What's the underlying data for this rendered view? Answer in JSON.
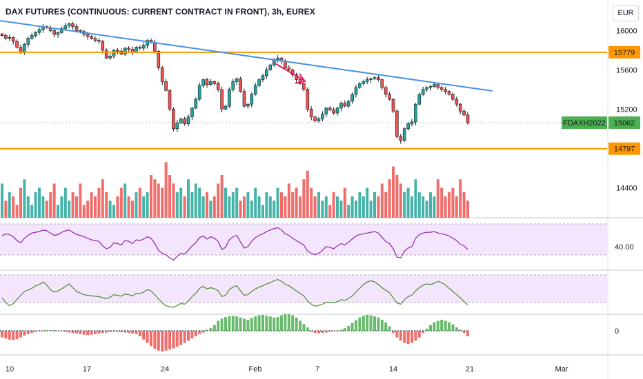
{
  "title": "DAX FUTURES (CONTINUOUS: CURRENT CONTRACT IN FRONT), 3h, EUREX",
  "currency_button": "EUR",
  "colors": {
    "up": "#26a69a",
    "down": "#ef5350",
    "trendline": "#4a90e2",
    "level_line": "#ff9800",
    "annotation_arrow": "#e91e63",
    "rsi_line": "#8e24aa",
    "osc_line": "#4c8a2c",
    "panel_fill": "#f3e5fb",
    "hist_up": "#4caf50",
    "hist_down": "#ef5350"
  },
  "chart_data": {
    "type": "candlestick",
    "symbol": "FDAXH2022",
    "timeframe": "3h",
    "exchange": "EUREX",
    "last_price": 15062,
    "price_axis": {
      "ticks": [
        16000,
        15600,
        15200,
        14400
      ],
      "ylim": [
        14100,
        16220
      ]
    },
    "x_axis": {
      "tick_labels": [
        "10",
        "17",
        "24",
        "Feb",
        "7",
        "14",
        "21",
        "Mar"
      ]
    },
    "horizontal_levels": [
      {
        "label": "15779",
        "value": 15779
      },
      {
        "label": "14797",
        "value": 14797
      }
    ],
    "trendline": {
      "from": {
        "date": "Jan 10",
        "price": 16090
      },
      "to": {
        "date": "Feb 21",
        "price": 15390
      }
    },
    "closes": [
      15950,
      15920,
      15930,
      15890,
      15830,
      15780,
      15860,
      15920,
      15950,
      15980,
      16010,
      16040,
      16030,
      16000,
      15960,
      15980,
      16020,
      16050,
      16070,
      16040,
      16000,
      15990,
      15960,
      15940,
      15920,
      15900,
      15890,
      15800,
      15720,
      15740,
      15800,
      15790,
      15760,
      15820,
      15810,
      15780,
      15830,
      15820,
      15850,
      15900,
      15880,
      15790,
      15620,
      15480,
      15390,
      15200,
      15000,
      15060,
      15100,
      15050,
      15120,
      15210,
      15300,
      15440,
      15500,
      15450,
      15480,
      15460,
      15400,
      15200,
      15230,
      15400,
      15480,
      15510,
      15380,
      15230,
      15250,
      15350,
      15440,
      15500,
      15540,
      15600,
      15650,
      15700,
      15720,
      15690,
      15620,
      15600,
      15550,
      15500,
      15460,
      15400,
      15200,
      15120,
      15080,
      15100,
      15150,
      15210,
      15190,
      15160,
      15210,
      15260,
      15230,
      15280,
      15350,
      15420,
      15460,
      15480,
      15500,
      15510,
      15520,
      15500,
      15420,
      15350,
      15300,
      15180,
      14920,
      14880,
      15000,
      15050,
      15070,
      15250,
      15350,
      15400,
      15420,
      15430,
      15450,
      15420,
      15400,
      15380,
      15350,
      15300,
      15250,
      15180,
      15140,
      15060
    ],
    "volume_rel": [
      0.8,
      0.4,
      0.6,
      0.5,
      0.3,
      0.7,
      0.9,
      0.5,
      0.3,
      0.6,
      0.7,
      0.5,
      0.4,
      0.6,
      0.8,
      0.3,
      0.5,
      0.7,
      0.4,
      0.6,
      0.5,
      0.8,
      0.3,
      0.4,
      0.6,
      0.5,
      0.7,
      0.9,
      0.6,
      0.4,
      0.3,
      0.5,
      0.7,
      0.8,
      0.5,
      0.4,
      0.6,
      0.7,
      0.5,
      0.6,
      1.0,
      0.9,
      0.8,
      0.7,
      1.3,
      1.0,
      0.8,
      0.6,
      0.7,
      0.5,
      0.9,
      0.6,
      0.8,
      0.7,
      0.5,
      0.6,
      0.4,
      0.5,
      0.8,
      1.0,
      0.7,
      0.5,
      0.6,
      0.7,
      0.4,
      0.5,
      0.6,
      0.4,
      0.7,
      0.5,
      0.3,
      0.6,
      0.5,
      0.4,
      0.7,
      0.6,
      0.5,
      0.8,
      0.6,
      0.7,
      0.5,
      0.9,
      1.1,
      0.7,
      0.5,
      0.6,
      0.4,
      0.5,
      0.3,
      0.6,
      0.5,
      0.4,
      0.7,
      0.3,
      0.5,
      0.4,
      0.6,
      0.5,
      0.7,
      0.4,
      0.6,
      0.5,
      0.8,
      0.6,
      0.9,
      1.2,
      1.0,
      0.8,
      0.6,
      0.7,
      0.5,
      0.9,
      0.6,
      0.5,
      0.4,
      0.6,
      0.5,
      0.9,
      0.7,
      0.5,
      0.6,
      0.7,
      0.5,
      0.9,
      0.6,
      0.4
    ],
    "rsi": {
      "label": "40.00",
      "levels": [
        70,
        30
      ],
      "values": [
        58,
        61,
        60,
        57,
        52,
        49,
        55,
        59,
        62,
        63,
        64,
        66,
        65,
        62,
        59,
        60,
        63,
        65,
        66,
        63,
        60,
        59,
        57,
        55,
        53,
        52,
        51,
        45,
        41,
        43,
        49,
        48,
        46,
        52,
        51,
        48,
        53,
        52,
        54,
        57,
        55,
        48,
        39,
        35,
        33,
        29,
        26,
        31,
        35,
        34,
        39,
        45,
        49,
        56,
        58,
        54,
        57,
        55,
        51,
        40,
        43,
        53,
        57,
        59,
        50,
        42,
        44,
        51,
        56,
        59,
        61,
        64,
        66,
        68,
        69,
        66,
        61,
        59,
        55,
        52,
        49,
        46,
        38,
        35,
        33,
        35,
        39,
        44,
        43,
        41,
        45,
        48,
        46,
        50,
        54,
        58,
        60,
        61,
        62,
        63,
        64,
        62,
        56,
        51,
        48,
        41,
        30,
        29,
        38,
        42,
        44,
        55,
        60,
        62,
        63,
        63,
        64,
        62,
        61,
        60,
        58,
        55,
        52,
        47,
        45,
        40
      ]
    },
    "oscillator": {
      "values": [
        0.3,
        0.15,
        0.05,
        0.12,
        0.25,
        0.38,
        0.5,
        0.55,
        0.6,
        0.68,
        0.72,
        0.8,
        0.7,
        0.55,
        0.48,
        0.52,
        0.58,
        0.66,
        0.74,
        0.62,
        0.5,
        0.45,
        0.4,
        0.38,
        0.36,
        0.35,
        0.34,
        0.3,
        0.28,
        0.32,
        0.4,
        0.38,
        0.35,
        0.42,
        0.4,
        0.36,
        0.44,
        0.43,
        0.48,
        0.56,
        0.52,
        0.4,
        0.26,
        0.14,
        0.05,
        0.02,
        0.0,
        0.06,
        0.12,
        0.1,
        0.2,
        0.34,
        0.44,
        0.6,
        0.66,
        0.58,
        0.62,
        0.59,
        0.52,
        0.34,
        0.38,
        0.56,
        0.64,
        0.68,
        0.52,
        0.38,
        0.4,
        0.5,
        0.58,
        0.64,
        0.68,
        0.74,
        0.78,
        0.84,
        0.88,
        0.82,
        0.72,
        0.68,
        0.6,
        0.52,
        0.44,
        0.36,
        0.2,
        0.1,
        0.04,
        0.06,
        0.1,
        0.16,
        0.15,
        0.14,
        0.18,
        0.24,
        0.22,
        0.28,
        0.36,
        0.48,
        0.6,
        0.72,
        0.8,
        0.84,
        0.8,
        0.72,
        0.62,
        0.54,
        0.46,
        0.3,
        0.14,
        0.1,
        0.24,
        0.34,
        0.38,
        0.52,
        0.62,
        0.7,
        0.74,
        0.72,
        0.76,
        0.82,
        0.78,
        0.7,
        0.6,
        0.5,
        0.4,
        0.3,
        0.18,
        0.08
      ]
    },
    "histogram": {
      "label": "0",
      "values": [
        -0.3,
        -0.35,
        -0.4,
        -0.42,
        -0.38,
        -0.3,
        -0.22,
        -0.15,
        -0.1,
        -0.05,
        -0.02,
        -0.01,
        0.02,
        0.03,
        0.02,
        0.0,
        -0.02,
        -0.05,
        -0.08,
        -0.1,
        -0.12,
        -0.15,
        -0.18,
        -0.2,
        -0.18,
        -0.15,
        -0.12,
        -0.1,
        -0.08,
        -0.06,
        -0.05,
        -0.05,
        -0.06,
        -0.08,
        -0.1,
        -0.12,
        -0.15,
        -0.25,
        -0.4,
        -0.55,
        -0.7,
        -0.82,
        -0.9,
        -0.95,
        -0.9,
        -0.85,
        -0.8,
        -0.72,
        -0.65,
        -0.55,
        -0.45,
        -0.35,
        -0.25,
        -0.15,
        -0.08,
        0.05,
        0.12,
        0.25,
        0.45,
        0.55,
        0.62,
        0.66,
        0.68,
        0.66,
        0.6,
        0.55,
        0.5,
        0.58,
        0.65,
        0.7,
        0.72,
        0.68,
        0.65,
        0.6,
        0.62,
        0.7,
        0.76,
        0.75,
        0.7,
        0.6,
        0.45,
        0.3,
        0.15,
        -0.05,
        -0.1,
        -0.12,
        -0.1,
        -0.08,
        -0.05,
        -0.03,
        -0.02,
        0.05,
        0.12,
        0.22,
        0.35,
        0.48,
        0.6,
        0.68,
        0.72,
        0.7,
        0.65,
        0.6,
        0.5,
        0.38,
        0.2,
        -0.1,
        -0.3,
        -0.45,
        -0.55,
        -0.6,
        -0.55,
        -0.45,
        -0.3,
        -0.1,
        0.1,
        0.25,
        0.38,
        0.45,
        0.5,
        0.45,
        0.38,
        0.28,
        0.15,
        0.05,
        -0.1,
        -0.25
      ]
    }
  }
}
